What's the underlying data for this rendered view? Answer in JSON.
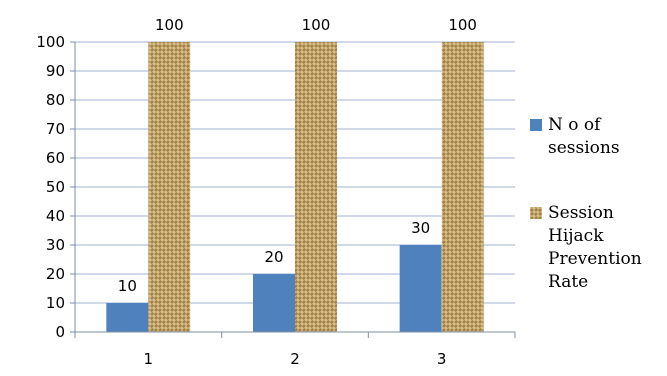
{
  "chart_data": {
    "type": "bar",
    "categories": [
      "1",
      "2",
      "3"
    ],
    "series": [
      {
        "name": "N o of sessions",
        "legend_lines": [
          "N o of",
          "sessions"
        ],
        "values": [
          10,
          20,
          30
        ],
        "color": "#4f81bd",
        "fill_style": "solid"
      },
      {
        "name": "Session Hijack Prevention Rate",
        "legend_lines": [
          "Session",
          "Hijack",
          "Prevention",
          "Rate"
        ],
        "values": [
          100,
          100,
          100
        ],
        "color": "#c8a968",
        "fill_style": "burlap-texture"
      }
    ],
    "title": "",
    "xlabel": "",
    "ylabel": "",
    "ylim": [
      0,
      100
    ],
    "yticks": [
      0,
      10,
      20,
      30,
      40,
      50,
      60,
      70,
      80,
      90,
      100
    ],
    "grid": true,
    "legend_position": "right",
    "data_labels": true
  }
}
